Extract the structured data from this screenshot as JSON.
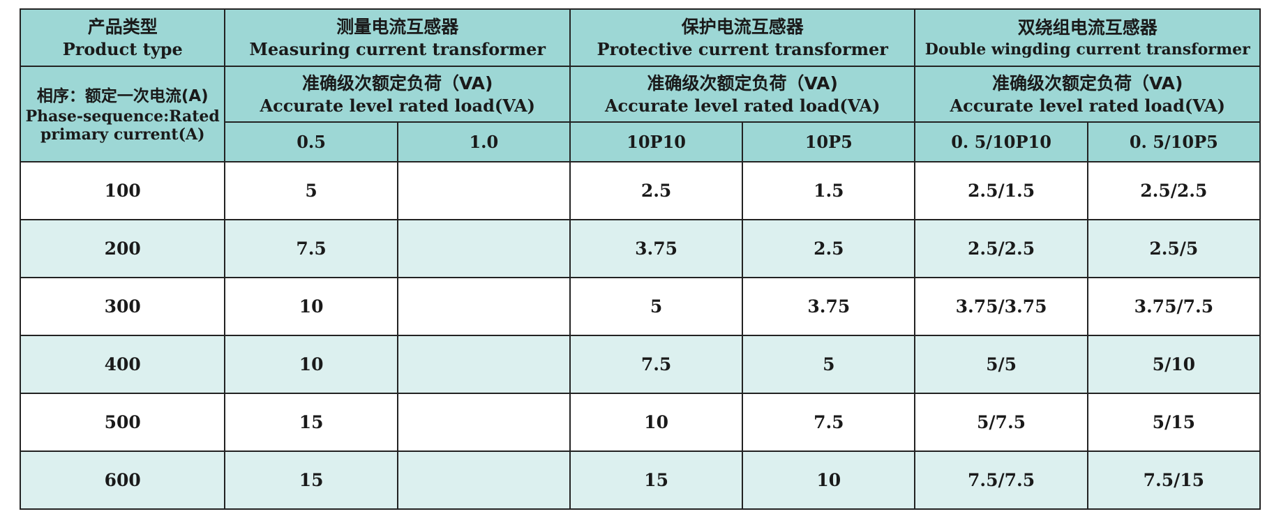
{
  "header": {
    "product_type_zh": "产品类型",
    "product_type_en": "Product type",
    "phase_zh": "相序：额定一次电流(A)",
    "phase_en_line1": "Phase-sequence:Rated",
    "phase_en_line2": "primary current(A)",
    "groups": [
      {
        "zh": "测量电流互感器",
        "en": "Measuring current transformer",
        "load_zh": "准确级次额定负荷（VA)",
        "load_en": "Accurate level rated load(VA)",
        "classes": [
          "0.5",
          "1.0"
        ]
      },
      {
        "zh": "保护电流互感器",
        "en": "Protective current transformer",
        "load_zh": "准确级次额定负荷（VA)",
        "load_en": "Accurate level rated load(VA)",
        "classes": [
          "10P10",
          "10P5"
        ]
      },
      {
        "zh": "双绕组电流互感器",
        "en": "Double wingding current transformer",
        "load_zh": "准确级次额定负荷（VA)",
        "load_en": "Accurate level rated load(VA)",
        "classes": [
          "0. 5/10P10",
          "0. 5/10P5"
        ]
      }
    ]
  },
  "rows": [
    {
      "current": "100",
      "values": [
        "5",
        "",
        "2.5",
        "1.5",
        "2.5/1.5",
        "2.5/2.5"
      ]
    },
    {
      "current": "200",
      "values": [
        "7.5",
        "",
        "3.75",
        "2.5",
        "2.5/2.5",
        "2.5/5"
      ]
    },
    {
      "current": "300",
      "values": [
        "10",
        "",
        "5",
        "3.75",
        "3.75/3.75",
        "3.75/7.5"
      ]
    },
    {
      "current": "400",
      "values": [
        "10",
        "",
        "7.5",
        "5",
        "5/5",
        "5/10"
      ]
    },
    {
      "current": "500",
      "values": [
        "15",
        "",
        "10",
        "7.5",
        "5/7.5",
        "5/15"
      ]
    },
    {
      "current": "600",
      "values": [
        "15",
        "",
        "15",
        "10",
        "7.5/7.5",
        "7.5/15"
      ]
    }
  ],
  "colors": {
    "header_bg": "#9dd7d5",
    "stripe_bg": "#dcf0ef",
    "border": "#222222"
  }
}
